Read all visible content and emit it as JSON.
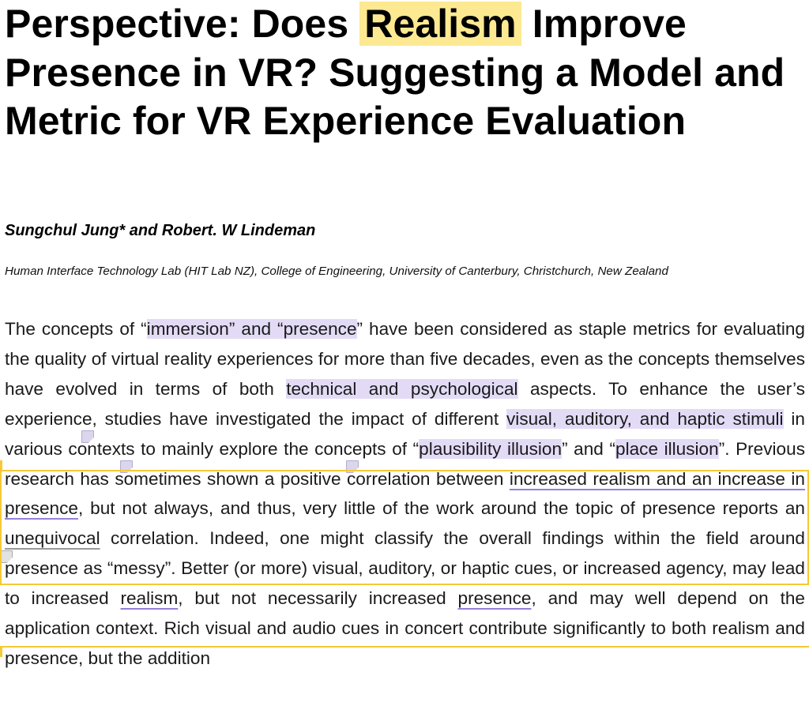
{
  "title": {
    "before": "Perspective: Does ",
    "highlight": "Realism",
    "after": " Improve Presence in VR? Suggesting a Model and Metric for VR Experience Evaluation"
  },
  "authors": "Sungchul Jung* and Robert. W Lindeman",
  "affiliation": "Human Interface Technology Lab (HIT Lab NZ), College of Engineering, University of Canterbury, Christchurch, New Zealand",
  "abstract": {
    "s01": "The concepts of “",
    "s02": "immersion” and “presence",
    "s03": "” have been considered as staple metrics for evaluating the quality of virtual reality experiences for more than five decades, even as the concepts themselves have evolved in terms of both ",
    "s04": "technical and psychological",
    "s05": " aspects. To enhance the user’s experience, studies have investigated the impact of different ",
    "s06": "visual, auditory, and haptic stimuli",
    "s07": " in various contexts to mainly explore the concepts of “",
    "s08": "plausibility illusion",
    "s09": "” and “",
    "s10": "place illusion",
    "s11": "”. Previous research has sometimes shown a positive correlation between ",
    "s12": "increased realism and an increase in presence",
    "s13": ", but not always, and thus, very little of the work around the topic of presence reports an ",
    "s14": "unequivocal",
    "s15": " correlation. Indeed, one might classify the overall findings within the field around presence as “messy”. Better (or more) visual, auditory, or haptic cues, or increased agency, may lead to increased ",
    "s16": "realism",
    "s17": ", but not necessarily increased ",
    "s18": "presence",
    "s19": ", and may well depend on the application context. Rich visual and audio cues in concert contribute significantly to both realism and presence, but the addition"
  },
  "colors": {
    "title_highlight": "#fce991",
    "text_highlight": "#e3dbf6",
    "underline": "#9580d9",
    "selection_box": "#f6c935"
  }
}
